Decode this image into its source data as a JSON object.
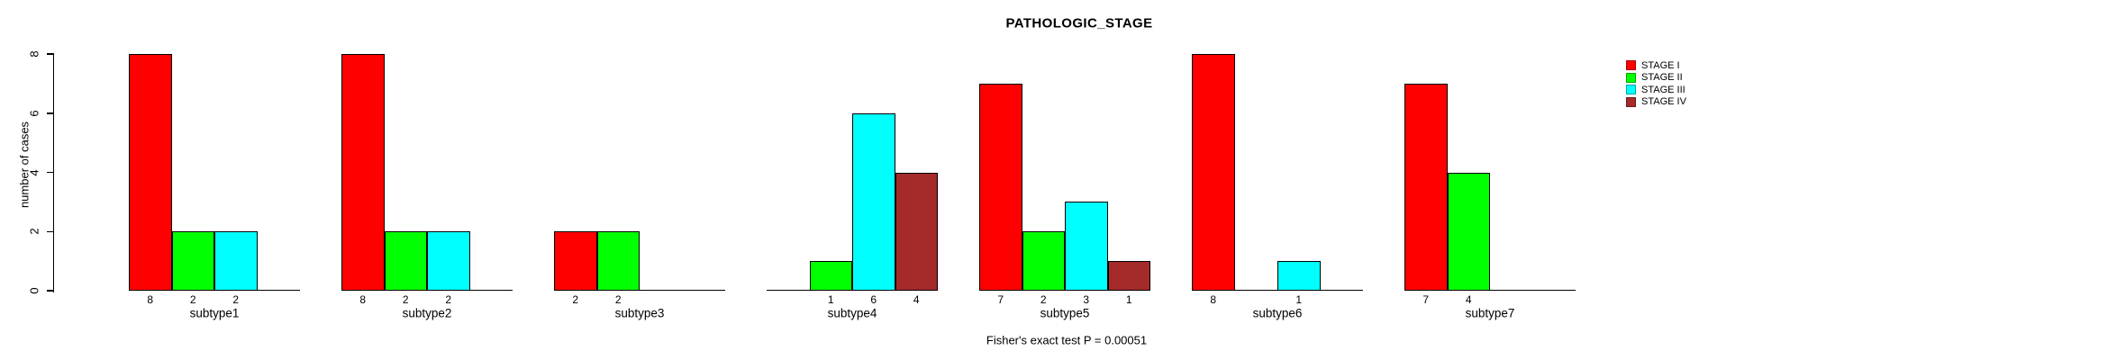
{
  "chart_data": {
    "type": "bar",
    "title": "PATHOLOGIC_STAGE",
    "ylabel": "number of cases",
    "xlabel": "",
    "annotation": "Fisher's exact test P = 0.00051",
    "ylim": [
      0,
      8
    ],
    "yticks": [
      0,
      2,
      4,
      6,
      8
    ],
    "grid": false,
    "legend_position": "right",
    "series": [
      {
        "name": "STAGE I",
        "color": "#FF0000",
        "values": [
          8,
          8,
          2,
          0,
          7,
          8,
          7
        ]
      },
      {
        "name": "STAGE II",
        "color": "#00FF00",
        "values": [
          2,
          2,
          2,
          1,
          2,
          0,
          4
        ]
      },
      {
        "name": "STAGE III",
        "color": "#00FFFF",
        "values": [
          2,
          2,
          0,
          6,
          3,
          1,
          0
        ]
      },
      {
        "name": "STAGE IV",
        "color": "#A52A2A",
        "values": [
          0,
          0,
          0,
          4,
          1,
          0,
          0
        ]
      }
    ],
    "categories": [
      "subtype1",
      "subtype2",
      "subtype3",
      "subtype4",
      "subtype5",
      "subtype6",
      "subtype7"
    ],
    "bar_value_labels_shown_for_nonzero_only": true
  },
  "colors": {
    "background": "#FFFFFF",
    "axis": "#000000",
    "text": "#000000"
  }
}
